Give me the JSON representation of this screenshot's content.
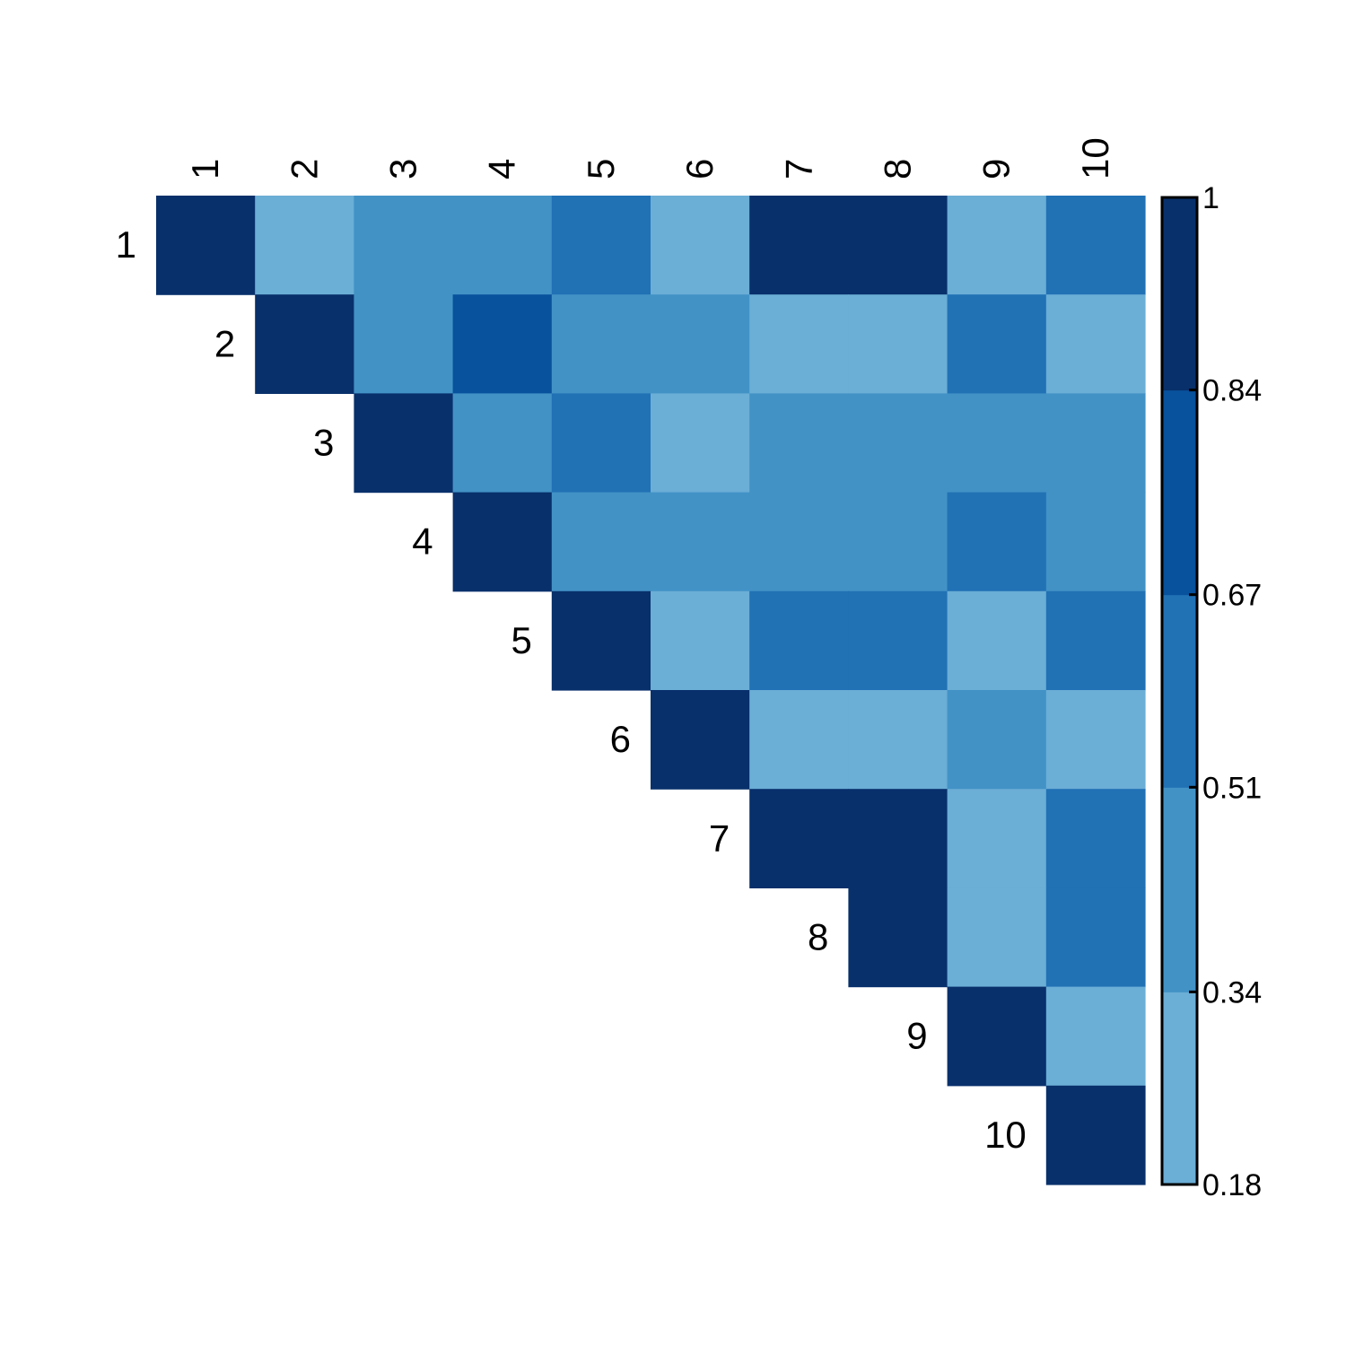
{
  "chart_data": {
    "type": "heatmap",
    "layout": "upper-triangular",
    "row_labels": [
      "1",
      "2",
      "3",
      "4",
      "5",
      "6",
      "7",
      "8",
      "9",
      "10"
    ],
    "col_labels": [
      "1",
      "2",
      "3",
      "4",
      "5",
      "6",
      "7",
      "8",
      "9",
      "10"
    ],
    "values": [
      [
        1.0,
        0.26,
        0.43,
        0.43,
        0.59,
        0.26,
        1.0,
        1.0,
        0.26,
        0.59
      ],
      [
        null,
        1.0,
        0.43,
        0.76,
        0.43,
        0.43,
        0.26,
        0.26,
        0.59,
        0.26
      ],
      [
        null,
        null,
        1.0,
        0.43,
        0.59,
        0.26,
        0.43,
        0.43,
        0.43,
        0.43
      ],
      [
        null,
        null,
        null,
        1.0,
        0.43,
        0.43,
        0.43,
        0.43,
        0.59,
        0.43
      ],
      [
        null,
        null,
        null,
        null,
        1.0,
        0.26,
        0.59,
        0.59,
        0.26,
        0.59
      ],
      [
        null,
        null,
        null,
        null,
        null,
        1.0,
        0.26,
        0.26,
        0.43,
        0.26
      ],
      [
        null,
        null,
        null,
        null,
        null,
        null,
        1.0,
        1.0,
        0.26,
        0.59
      ],
      [
        null,
        null,
        null,
        null,
        null,
        null,
        null,
        1.0,
        0.26,
        0.59
      ],
      [
        null,
        null,
        null,
        null,
        null,
        null,
        null,
        null,
        1.0,
        0.26
      ],
      [
        null,
        null,
        null,
        null,
        null,
        null,
        null,
        null,
        null,
        1.0
      ]
    ],
    "colorbar": {
      "ticks": [
        "1",
        "0.84",
        "0.67",
        "0.51",
        "0.34",
        "0.18"
      ],
      "breaks": [
        0.18,
        0.34,
        0.51,
        0.67,
        0.84,
        1.0
      ],
      "colors": [
        "#6baed6",
        "#4292c6",
        "#2171b5",
        "#08519c",
        "#08306b"
      ],
      "range": [
        0.18,
        1.0
      ],
      "position": "right"
    },
    "title": "",
    "grid": false
  }
}
